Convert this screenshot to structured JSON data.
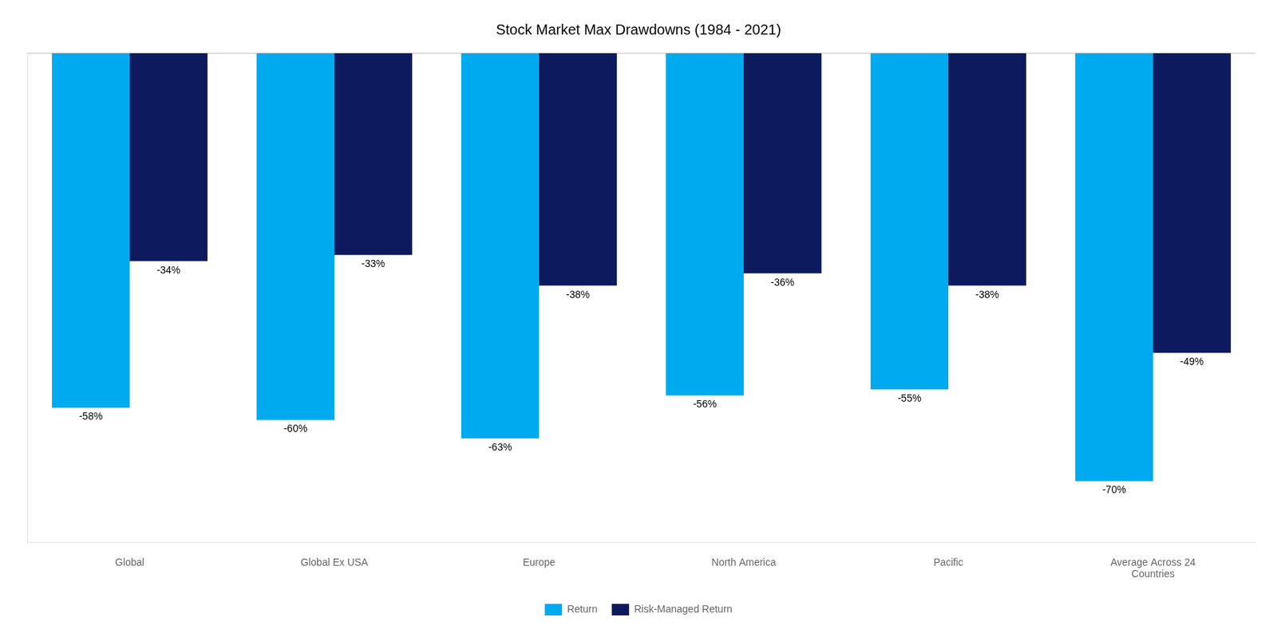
{
  "chart_data": {
    "type": "bar",
    "title": "Stock Market Max Drawdowns (1984 - 2021)",
    "categories": [
      "Global",
      "Global Ex USA",
      "Europe",
      "North America",
      "Pacific",
      "Average Across 24\nCountries"
    ],
    "series": [
      {
        "name": "Return",
        "color": "#00AAEE",
        "values": [
          -58,
          -60,
          -63,
          -56,
          -55,
          -70
        ],
        "value_labels": [
          "-58%",
          "-60%",
          "-63%",
          "-56%",
          "-55%",
          "-70%"
        ]
      },
      {
        "name": "Risk-Managed Return",
        "color": "#0D1B5E",
        "values": [
          -34,
          -33,
          -38,
          -36,
          -38,
          -49
        ],
        "value_labels": [
          "-34%",
          "-33%",
          "-38%",
          "-36%",
          "-38%",
          "-49%"
        ]
      }
    ],
    "ylim": [
      -80,
      0
    ],
    "yticks": [],
    "tick_labels": "x",
    "grid": false,
    "legend": "bottom",
    "data_labels": true
  }
}
